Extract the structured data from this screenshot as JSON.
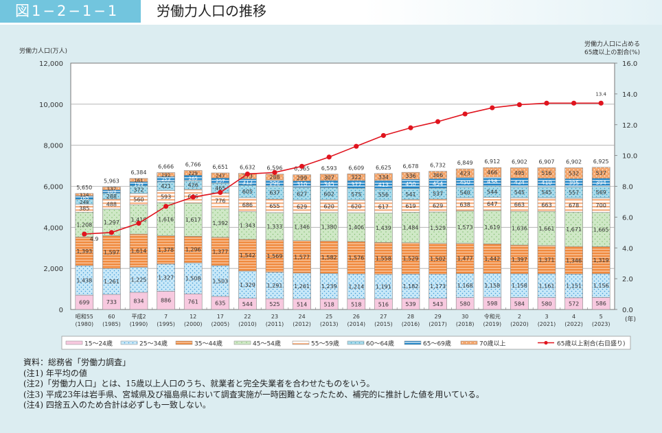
{
  "header": {
    "figure_label": "図1−2−1−1",
    "title": "労働力人口の推移"
  },
  "chart_data": {
    "type": "bar",
    "stacked": true,
    "title": "労働力人口の推移",
    "ylabel": "労働力人口(万人)",
    "ylabel_right_line1": "労働力人口に占める",
    "ylabel_right_line2": "65歳以上の割合(%)",
    "xlabel_unit": "(年)",
    "ylim": [
      0,
      12000
    ],
    "yticks": [
      "0",
      "2,000",
      "4,000",
      "6,000",
      "8,000",
      "10,000",
      "12,000"
    ],
    "y2lim": [
      0,
      16
    ],
    "y2ticks": [
      "0.0",
      "2.0",
      "4.0",
      "6.0",
      "8.0",
      "10.0",
      "12.0",
      "14.0",
      "16.0"
    ],
    "grid": true,
    "legend_position": "bottom",
    "categories": [
      {
        "era": "昭和55",
        "year": "(1980)"
      },
      {
        "era": "60",
        "year": "(1985)"
      },
      {
        "era": "平成2",
        "year": "(1990)"
      },
      {
        "era": "7",
        "year": "(1995)"
      },
      {
        "era": "12",
        "year": "(2000)"
      },
      {
        "era": "17",
        "year": "(2005)"
      },
      {
        "era": "22",
        "year": "(2010)"
      },
      {
        "era": "23",
        "year": "(2011)"
      },
      {
        "era": "24",
        "year": "(2012)"
      },
      {
        "era": "25",
        "year": "(2013)"
      },
      {
        "era": "26",
        "year": "(2014)"
      },
      {
        "era": "27",
        "year": "(2015)"
      },
      {
        "era": "28",
        "year": "(2016)"
      },
      {
        "era": "29",
        "year": "(2017)"
      },
      {
        "era": "30",
        "year": "(2018)"
      },
      {
        "era": "令和元",
        "year": "(2019)"
      },
      {
        "era": "2",
        "year": "(2020)"
      },
      {
        "era": "3",
        "year": "(2021)"
      },
      {
        "era": "4",
        "year": "(2022)"
      },
      {
        "era": "5",
        "year": "(2023)"
      }
    ],
    "series": [
      {
        "name": "15〜24歳",
        "key": "a1524",
        "color": "#f7c9df",
        "pattern": "solid",
        "values": [
          699,
          733,
          834,
          886,
          761,
          635,
          544,
          525,
          514,
          518,
          518,
          516,
          539,
          543,
          580,
          598,
          584,
          580,
          572,
          586
        ]
      },
      {
        "name": "25〜34歳",
        "key": "a2534",
        "color": "#c8e8f8",
        "pattern": "dots",
        "values": [
          1438,
          1261,
          1225,
          1327,
          1508,
          1503,
          1329,
          1291,
          1261,
          1239,
          1214,
          1191,
          1182,
          1173,
          1168,
          1158,
          1158,
          1161,
          1151,
          1156
        ]
      },
      {
        "name": "35〜44歳",
        "key": "a3544",
        "color": "#f08a3e",
        "pattern": "stripes",
        "values": [
          1393,
          1597,
          1614,
          1378,
          1296,
          1377,
          1542,
          1569,
          1577,
          1582,
          1576,
          1558,
          1529,
          1502,
          1477,
          1442,
          1397,
          1371,
          1346,
          1319
        ]
      },
      {
        "name": "45〜54歳",
        "key": "a4554",
        "color": "#cfe8c6",
        "pattern": "dots",
        "values": [
          1208,
          1297,
          1418,
          1616,
          1617,
          1392,
          1343,
          1333,
          1346,
          1380,
          1406,
          1439,
          1484,
          1529,
          1573,
          1619,
          1636,
          1661,
          1671,
          1665
        ]
      },
      {
        "name": "55〜59歳",
        "key": "a5559",
        "color": "#f6b184",
        "pattern": "light-stripes",
        "values": [
          385,
          488,
          560,
          593,
          666,
          776,
          686,
          655,
          629,
          620,
          620,
          617,
          619,
          629,
          638,
          647,
          663,
          663,
          678,
          700
        ]
      },
      {
        "name": "60〜64歳",
        "key": "a6064",
        "color": "#a9dbeb",
        "pattern": "dots",
        "values": [
          248,
          288,
          372,
          421,
          426,
          465,
          605,
          637,
          627,
          602,
          575,
          556,
          541,
          537,
          540,
          544,
          545,
          545,
          557,
          569
        ]
      },
      {
        "name": "65〜69歳",
        "key": "a6569",
        "color": "#1f86c8",
        "pattern": "stripes",
        "values": [
          165,
          163,
          199,
          253,
          265,
          257,
          312,
          296,
          310,
          345,
          377,
          413,
          450,
          454,
          450,
          438,
          424,
          410,
          395,
          394
        ]
      },
      {
        "name": "70歳以上",
        "key": "a70",
        "color": "#f4a66c",
        "pattern": "dots",
        "values": [
          114,
          137,
          161,
          192,
          229,
          247,
          273,
          288,
          299,
          307,
          322,
          334,
          336,
          366,
          423,
          466,
          495,
          516,
          532,
          537
        ]
      }
    ],
    "totals": [
      "5,650",
      "5,963",
      "6,384",
      "6,666",
      "6,766",
      "6,651",
      "6,632",
      "6,596",
      "6,565",
      "6,593",
      "6,609",
      "6,625",
      "6,678",
      "6,732",
      "6,849",
      "6,912",
      "6,902",
      "6,907",
      "6,902",
      "6,925"
    ],
    "line_series": {
      "name": "65歳以上割合(右目盛り)",
      "axis": "right",
      "color": "#e0141e",
      "values": [
        4.9,
        5.0,
        5.6,
        6.7,
        7.3,
        7.6,
        8.8,
        8.9,
        9.3,
        9.9,
        10.6,
        11.3,
        11.8,
        12.2,
        12.7,
        13.1,
        13.3,
        13.4,
        13.4,
        13.4
      ],
      "labeled_points": [
        {
          "index": 0,
          "label": "4.9"
        },
        {
          "index": 19,
          "label": "13.4"
        }
      ]
    }
  },
  "notes": [
    "資料：総務省「労働力調査」",
    "(注1) 年平均の値",
    "(注2)「労働力人口」とは、15歳以上人口のうち、就業者と完全失業者を合わせたものをいう。",
    "(注3) 平成23年は岩手県、宮城県及び福島県において調査実施が一時困難となったため、補完的に推計した値を用いている。",
    "(注4) 四捨五入のため合計は必ずしも一致しない。"
  ]
}
